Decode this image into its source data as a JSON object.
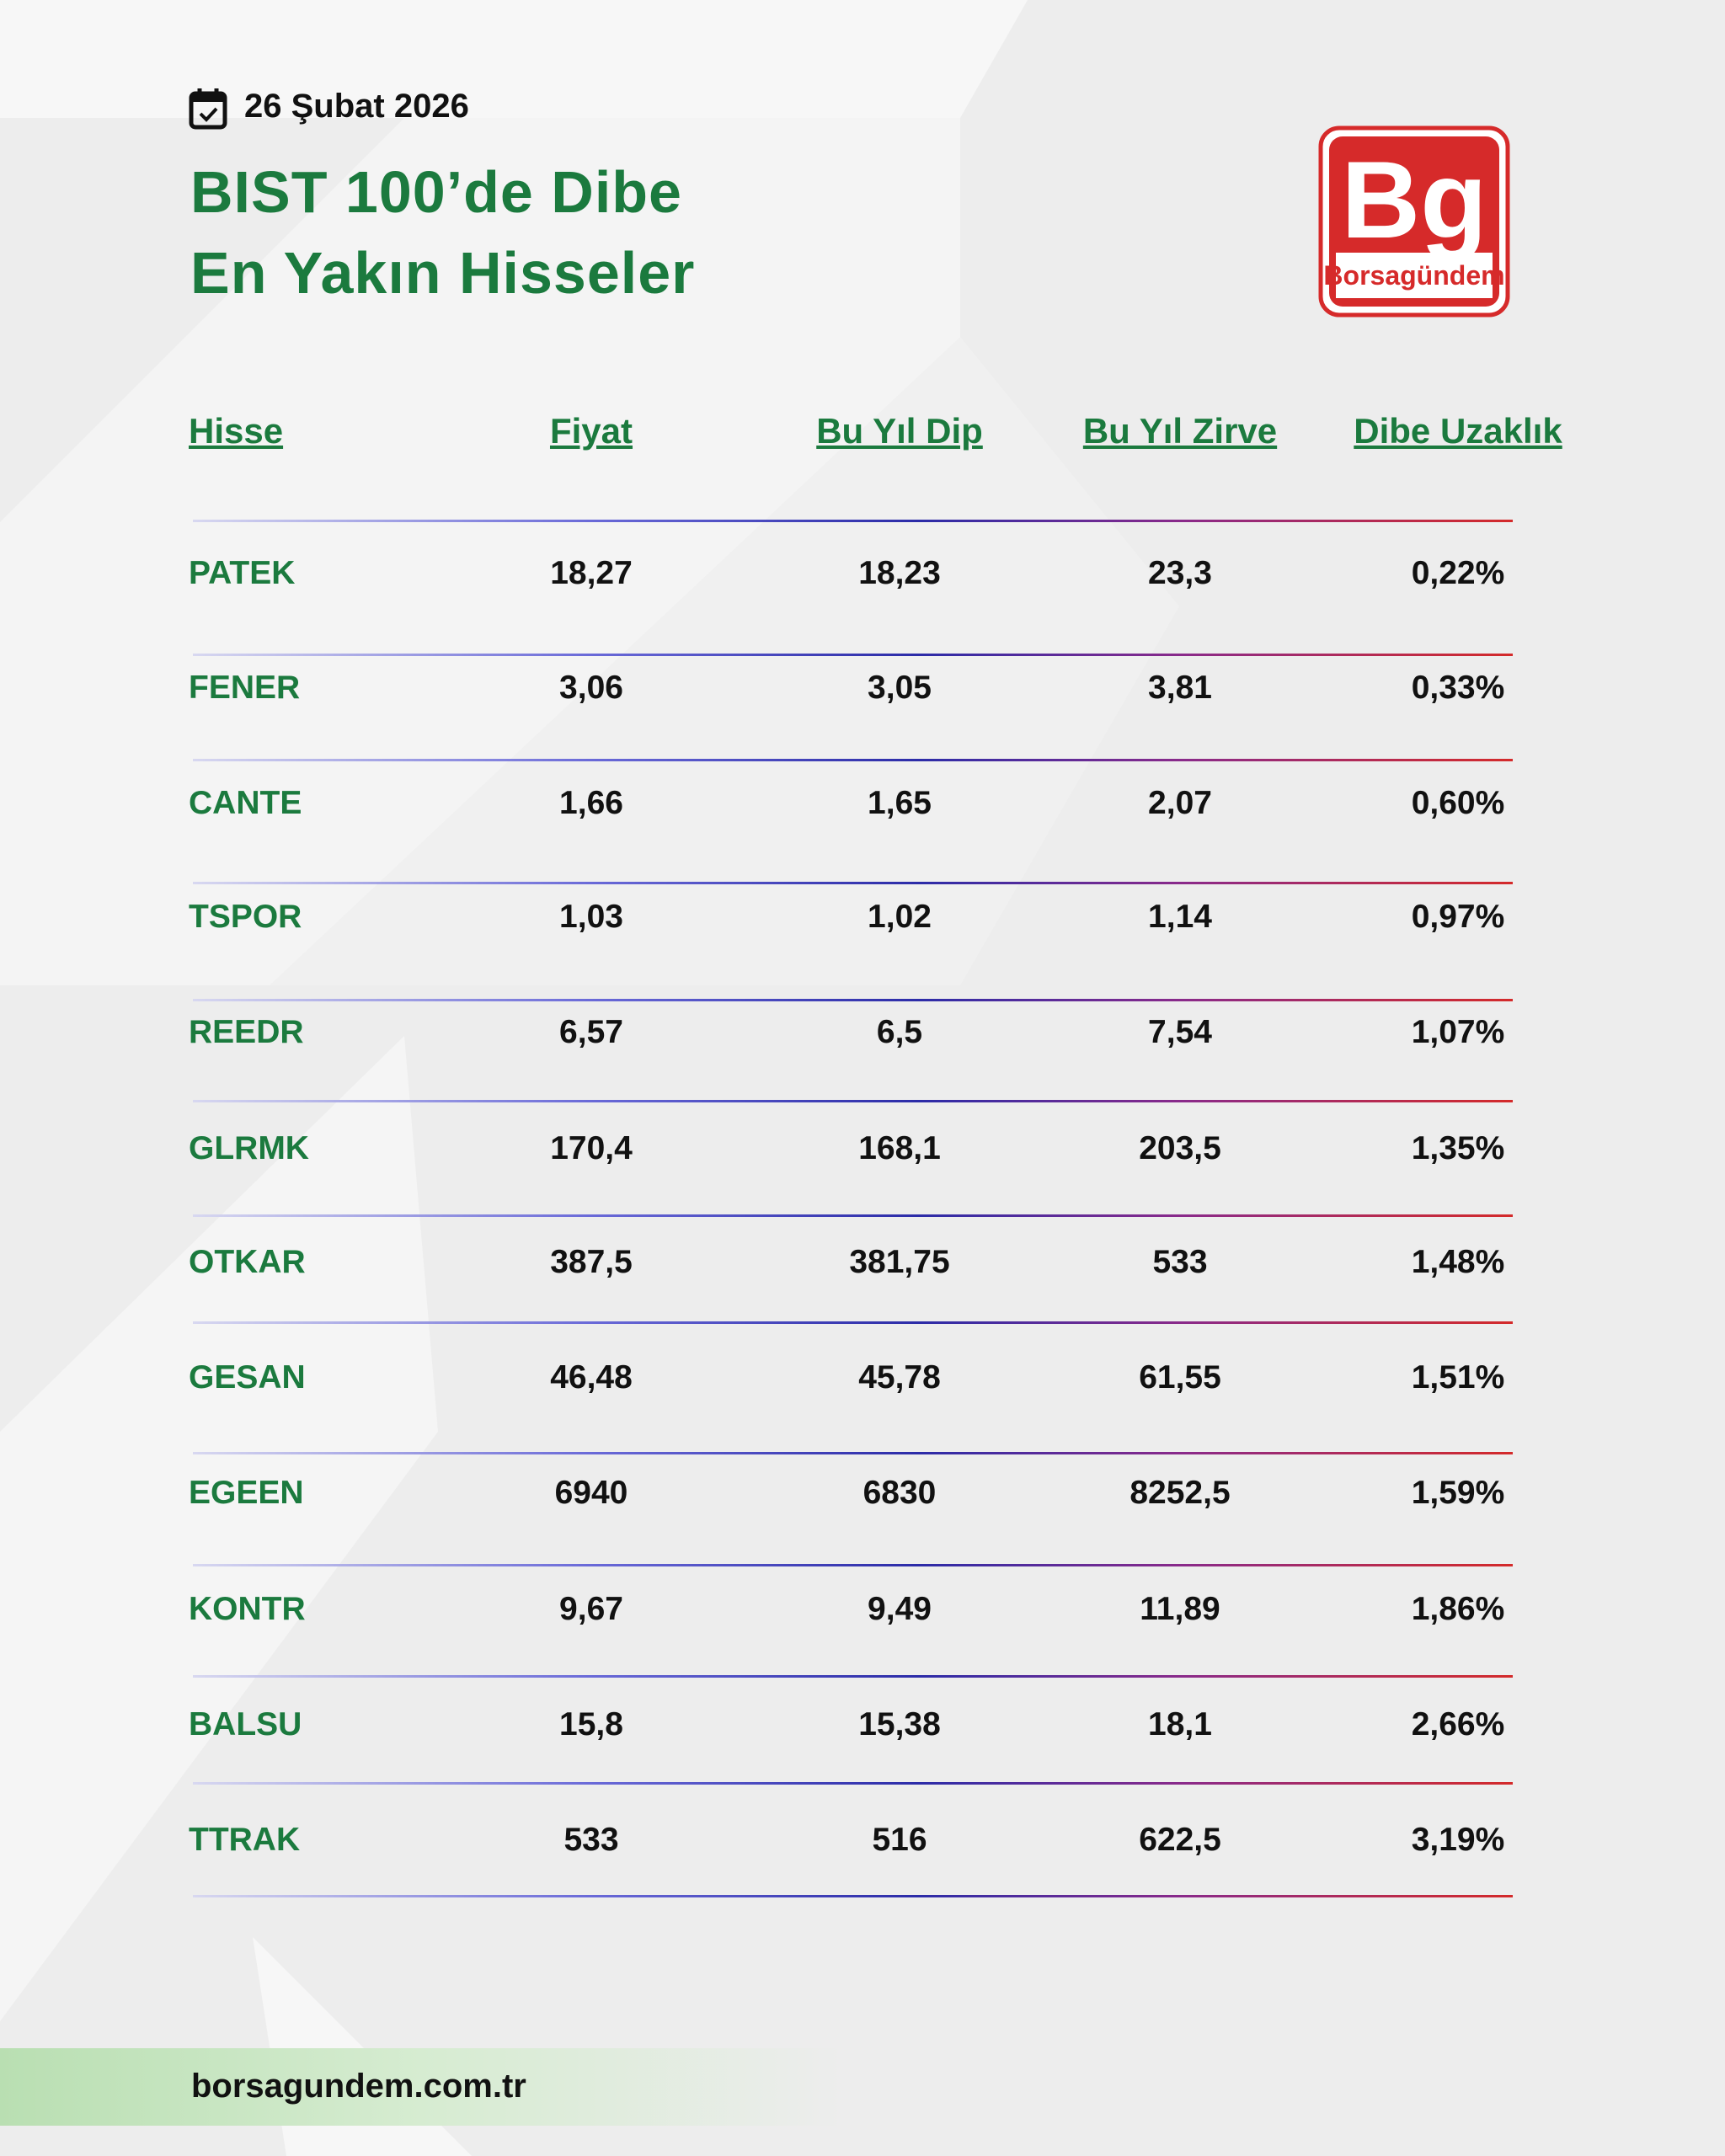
{
  "header": {
    "date": "26 Şubat 2026",
    "title_line1": "BIST 100’de Dibe",
    "title_line2": "En Yakın Hisseler"
  },
  "logo": {
    "mark": "Bg",
    "name": "Borsagündem"
  },
  "table": {
    "columns": [
      "Hisse",
      "Fiyat",
      "Bu Yıl Dip",
      "Bu Yıl Zirve",
      "Dibe Uzaklık"
    ],
    "rows": [
      [
        "PATEK",
        "18,27",
        "18,23",
        "23,3",
        "0,22%"
      ],
      [
        "FENER",
        "3,06",
        "3,05",
        "3,81",
        "0,33%"
      ],
      [
        "CANTE",
        "1,66",
        "1,65",
        "2,07",
        "0,60%"
      ],
      [
        "TSPOR",
        "1,03",
        "1,02",
        "1,14",
        "0,97%"
      ],
      [
        "REEDR",
        "6,57",
        "6,5",
        "7,54",
        "1,07%"
      ],
      [
        "GLRMK",
        "170,4",
        "168,1",
        "203,5",
        "1,35%"
      ],
      [
        "OTKAR",
        "387,5",
        "381,75",
        "533",
        "1,48%"
      ],
      [
        "GESAN",
        "46,48",
        "45,78",
        "61,55",
        "1,51%"
      ],
      [
        "EGEEN",
        "6940",
        "6830",
        "8252,5",
        "1,59%"
      ],
      [
        "KONTR",
        "9,67",
        "9,49",
        "11,89",
        "1,86%"
      ],
      [
        "BALSU",
        "15,8",
        "15,38",
        "18,1",
        "2,66%"
      ],
      [
        "TTRAK",
        "533",
        "516",
        "622,5",
        "3,19%"
      ]
    ]
  },
  "footer": {
    "url": "borsagundem.com.tr"
  }
}
